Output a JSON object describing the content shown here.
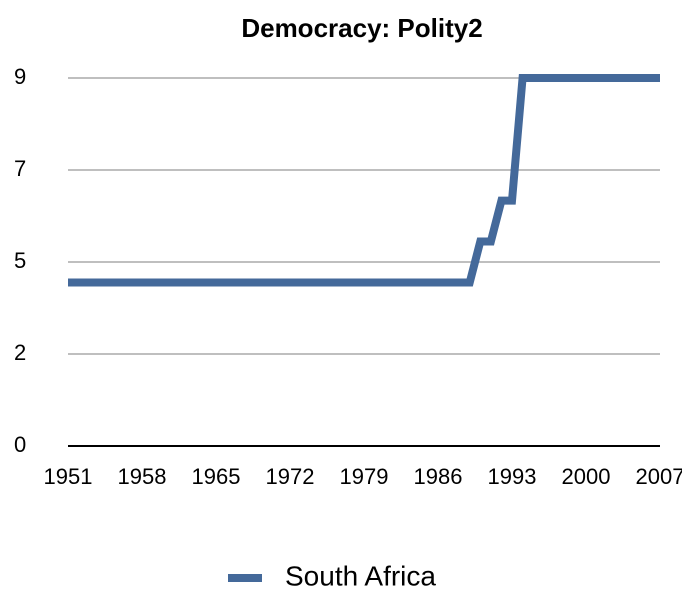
{
  "chart_data": {
    "type": "line",
    "title": "Democracy: Polity2",
    "x": [
      1951,
      1952,
      1953,
      1954,
      1955,
      1956,
      1957,
      1958,
      1959,
      1960,
      1961,
      1962,
      1963,
      1964,
      1965,
      1966,
      1967,
      1968,
      1969,
      1970,
      1971,
      1972,
      1973,
      1974,
      1975,
      1976,
      1977,
      1978,
      1979,
      1980,
      1981,
      1982,
      1983,
      1984,
      1985,
      1986,
      1987,
      1988,
      1989,
      1990,
      1991,
      1992,
      1993,
      1994,
      1995,
      1996,
      1997,
      1998,
      1999,
      2000,
      2001,
      2002,
      2003,
      2004,
      2005,
      2006,
      2007
    ],
    "series": [
      {
        "name": "South Africa",
        "color": "#44699a",
        "values": [
          4,
          4,
          4,
          4,
          4,
          4,
          4,
          4,
          4,
          4,
          4,
          4,
          4,
          4,
          4,
          4,
          4,
          4,
          4,
          4,
          4,
          4,
          4,
          4,
          4,
          4,
          4,
          4,
          4,
          4,
          4,
          4,
          4,
          4,
          4,
          4,
          4,
          4,
          4,
          5,
          5,
          6,
          6,
          9,
          9,
          9,
          9,
          9,
          9,
          9,
          9,
          9,
          9,
          9,
          9,
          9,
          9
        ]
      }
    ],
    "xlim": [
      1951,
      2007
    ],
    "xticks": [
      1951,
      1958,
      1965,
      1972,
      1979,
      1986,
      1993,
      2000,
      2007
    ],
    "ylim": [
      0,
      9
    ],
    "yticks": [
      0,
      {
        "value": 2.25,
        "label": "2"
      },
      {
        "value": 4.5,
        "label": "5"
      },
      {
        "value": 6.75,
        "label": "7"
      },
      9
    ],
    "grid": true,
    "legend": "bottom"
  }
}
